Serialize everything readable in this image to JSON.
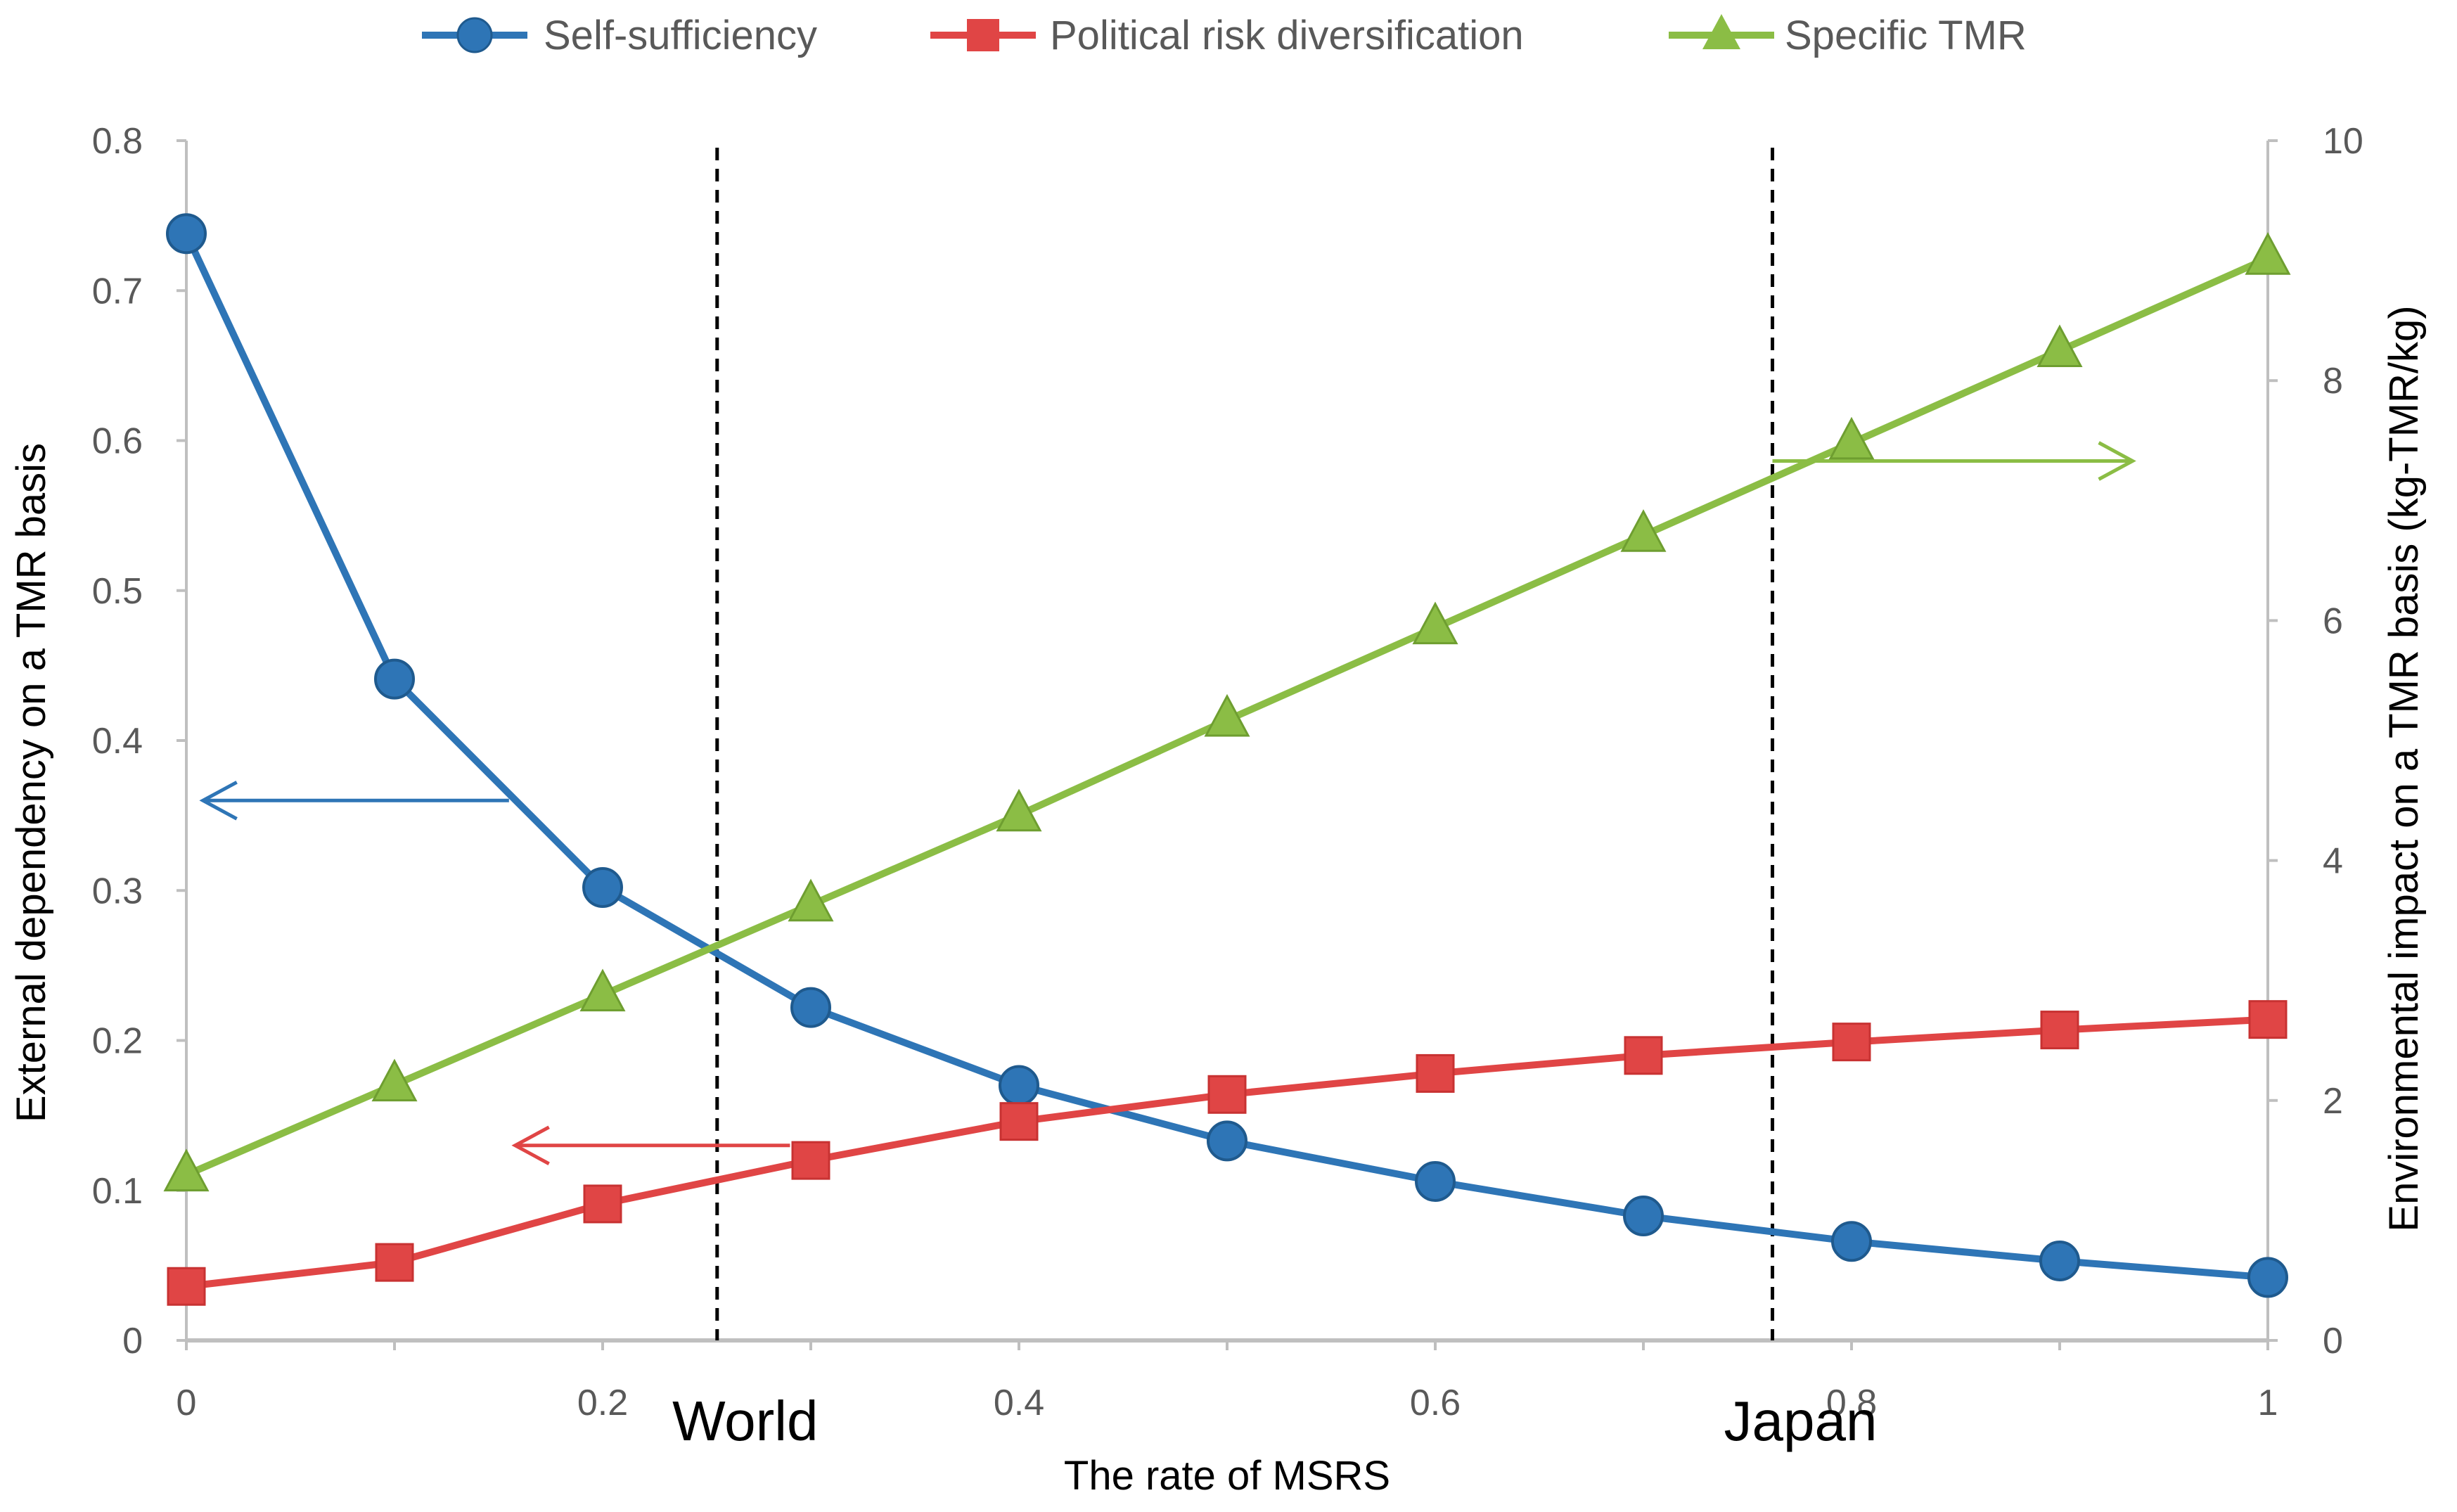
{
  "chart_data": {
    "type": "line",
    "xlabel": "The rate of MSRS",
    "ylabel_left": "External dependency on a TMR basis",
    "ylabel_right": "Environmental impact on a TMR basis (kg-TMR/kg)",
    "x": [
      0,
      0.1,
      0.2,
      0.3,
      0.4,
      0.5,
      0.6,
      0.7,
      0.8,
      0.9,
      1.0
    ],
    "xlim": [
      0,
      1
    ],
    "x_ticks": [
      0,
      0.2,
      0.4,
      0.6,
      0.8,
      1
    ],
    "x_tick_labels": [
      "0",
      "0.2",
      "0.4",
      "0.6",
      "0.8",
      "1"
    ],
    "ylim_left": [
      0,
      0.8
    ],
    "y_ticks_left": [
      0,
      0.1,
      0.2,
      0.3,
      0.4,
      0.5,
      0.6,
      0.7,
      0.8
    ],
    "y_tick_labels_left": [
      "0",
      "0.1",
      "0.2",
      "0.3",
      "0.4",
      "0.5",
      "0.6",
      "0.7",
      "0.8"
    ],
    "ylim_right": [
      0,
      10
    ],
    "y_ticks_right": [
      0,
      2,
      4,
      6,
      8,
      10
    ],
    "y_tick_labels_right": [
      "0",
      "2",
      "4",
      "6",
      "8",
      "10"
    ],
    "grid": false,
    "legend_position": "top",
    "series": [
      {
        "name": "Self-sufficiency",
        "axis": "left",
        "marker": "circle",
        "color": "#2E75B6",
        "values": [
          0.738,
          0.441,
          0.302,
          0.222,
          0.17,
          0.133,
          0.106,
          0.083,
          0.066,
          0.053,
          0.042
        ]
      },
      {
        "name": "Political risk diversification",
        "axis": "left",
        "marker": "square",
        "color": "#E04545",
        "values": [
          0.036,
          0.052,
          0.091,
          0.12,
          0.146,
          0.164,
          0.178,
          0.19,
          0.199,
          0.207,
          0.214
        ]
      },
      {
        "name": "Specific TMR",
        "axis": "right",
        "marker": "triangle",
        "color": "#8BBD45",
        "values": [
          1.38,
          2.13,
          2.88,
          3.63,
          4.38,
          5.17,
          5.94,
          6.71,
          7.48,
          8.25,
          9.02
        ]
      }
    ],
    "reference_lines": [
      {
        "x": 0.255,
        "label": "World"
      },
      {
        "x": 0.762,
        "label": "Japan"
      }
    ],
    "annotations": [
      {
        "type": "arrow",
        "direction": "left",
        "series": "Self-sufficiency",
        "y": 0.36,
        "x_from": 0.155,
        "x_to": 0.008
      },
      {
        "type": "arrow",
        "direction": "left",
        "series": "Political risk diversification",
        "y": 0.13,
        "x_from": 0.29,
        "x_to": 0.158
      },
      {
        "type": "arrow",
        "direction": "right",
        "series": "Specific TMR",
        "y": 7.33,
        "x_from": 0.762,
        "x_to": 0.935
      }
    ]
  }
}
